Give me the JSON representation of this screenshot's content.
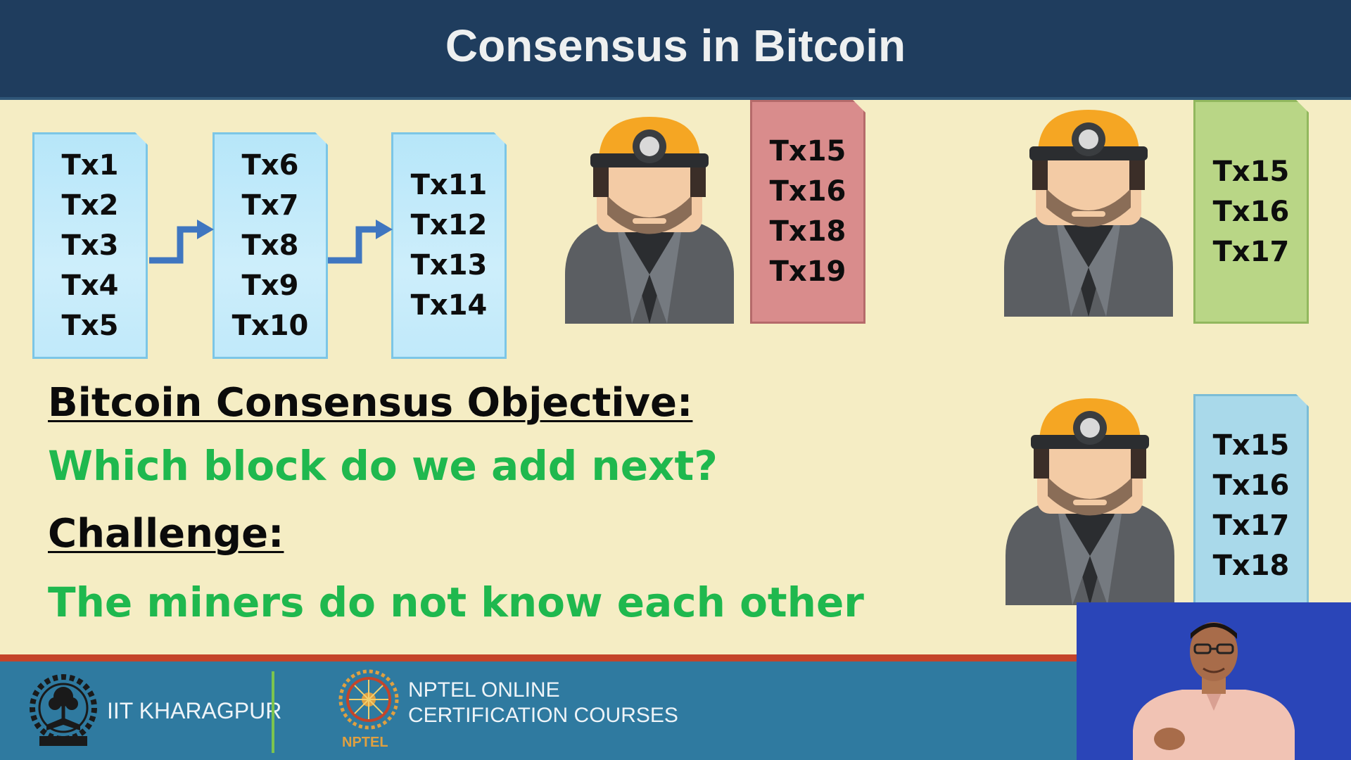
{
  "header": {
    "title": "Consensus in Bitcoin"
  },
  "chain_blocks": [
    {
      "txs": [
        "Tx1",
        "Tx2",
        "Tx3",
        "Tx4",
        "Tx5"
      ]
    },
    {
      "txs": [
        "Tx6",
        "Tx7",
        "Tx8",
        "Tx9",
        "Tx10"
      ]
    },
    {
      "txs": [
        "Tx11",
        "Tx12",
        "Tx13",
        "Tx14"
      ]
    }
  ],
  "miners": [
    {
      "icon": "miner-icon",
      "block_color": "#d98c8c",
      "txs": [
        "Tx15",
        "Tx16",
        "Tx18",
        "Tx19"
      ]
    },
    {
      "icon": "miner-icon",
      "block_color": "#b9d686",
      "txs": [
        "Tx15",
        "Tx16",
        "Tx17"
      ]
    },
    {
      "icon": "miner-icon",
      "block_color": "#a9d9ea",
      "txs": [
        "Tx15",
        "Tx16",
        "Tx17",
        "Tx18"
      ]
    }
  ],
  "text": {
    "objective_label": "Bitcoin Consensus Objective:",
    "objective_value": "Which block do we add next?",
    "challenge_label": "Challenge:",
    "challenge_value": "The miners do not know each other"
  },
  "footer": {
    "institute": "IIT KHARAGPUR",
    "course_line1": "NPTEL ONLINE",
    "course_line2": "CERTIFICATION COURSES",
    "nptel_logo_text": "NPTEL"
  },
  "colors": {
    "header_bg": "#1f3d5e",
    "slide_bg": "#f5edc4",
    "accent_green": "#1fb84e",
    "footer_bg": "#2f7aa0",
    "footer_stripe": "#c4442a"
  }
}
